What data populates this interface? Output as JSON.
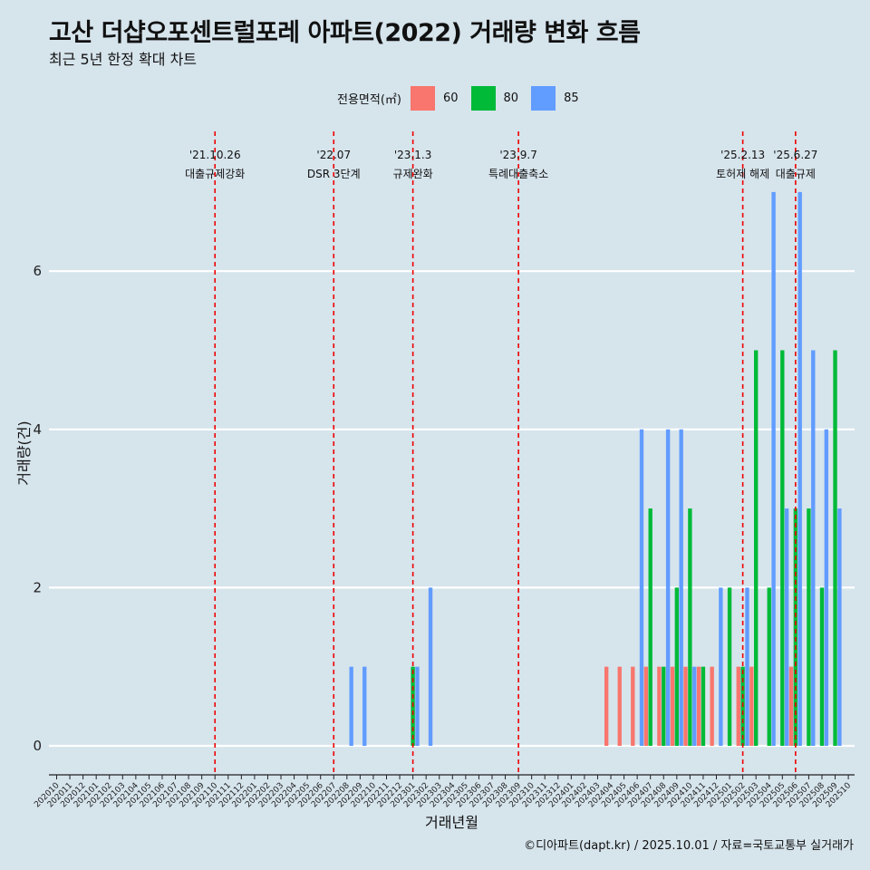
{
  "title": "고산 더샵오포센트럴포레 아파트(2022) 거래량 변화 흐름",
  "subtitle": "최근 5년 한정 확대 차트",
  "caption": "©디아파트(dapt.kr) / 2025.10.01 / 자료=국토교통부 실거래가",
  "colors": {
    "background": "#d6e4ec",
    "s60": "#f8766d",
    "s80": "#00ba38",
    "s85": "#619cff",
    "event_line": "#ee0000"
  },
  "chart_data": {
    "type": "bar",
    "xlabel": "거래년월",
    "ylabel": "거래량(건)",
    "ylim": [
      -0.3,
      7.2
    ],
    "yticks": [
      0,
      2,
      4,
      6
    ],
    "grid": "horizontal",
    "legend": {
      "title": "전용면적(㎡)",
      "placement": "top",
      "entries": [
        "60",
        "80",
        "85"
      ]
    },
    "categories": [
      "202010",
      "202011",
      "202012",
      "202101",
      "202102",
      "202103",
      "202104",
      "202105",
      "202106",
      "202107",
      "202108",
      "202109",
      "202110",
      "202111",
      "202112",
      "202201",
      "202202",
      "202203",
      "202204",
      "202205",
      "202206",
      "202207",
      "202208",
      "202209",
      "202210",
      "202211",
      "202212",
      "202301",
      "202302",
      "202303",
      "202304",
      "202305",
      "202306",
      "202307",
      "202308",
      "202309",
      "202310",
      "202311",
      "202312",
      "202401",
      "202402",
      "202403",
      "202404",
      "202405",
      "202406",
      "202407",
      "202408",
      "202409",
      "202410",
      "202411",
      "202412",
      "202501",
      "202502",
      "202503",
      "202504",
      "202505",
      "202506",
      "202507",
      "202508",
      "202509",
      "202510"
    ],
    "series": [
      {
        "name": "60",
        "color_key": "s60",
        "values": [
          0,
          0,
          0,
          0,
          0,
          0,
          0,
          0,
          0,
          0,
          0,
          0,
          0,
          0,
          0,
          0,
          0,
          0,
          0,
          0,
          0,
          0,
          0,
          0,
          0,
          0,
          0,
          0,
          0,
          0,
          0,
          0,
          0,
          0,
          0,
          0,
          0,
          0,
          0,
          0,
          0,
          0,
          1,
          1,
          1,
          1,
          1,
          1,
          1,
          1,
          1,
          0,
          1,
          1,
          0,
          0,
          1,
          0,
          0,
          0,
          0
        ]
      },
      {
        "name": "80",
        "color_key": "s80",
        "values": [
          0,
          0,
          0,
          0,
          0,
          0,
          0,
          0,
          0,
          0,
          0,
          0,
          0,
          0,
          0,
          0,
          0,
          0,
          0,
          0,
          0,
          0,
          0,
          0,
          0,
          0,
          0,
          1,
          0,
          0,
          0,
          0,
          0,
          0,
          0,
          0,
          0,
          0,
          0,
          0,
          0,
          0,
          0,
          0,
          0,
          3,
          1,
          2,
          3,
          1,
          0,
          2,
          1,
          5,
          2,
          5,
          3,
          3,
          2,
          5,
          0
        ]
      },
      {
        "name": "85",
        "color_key": "s85",
        "values": [
          0,
          0,
          0,
          0,
          0,
          0,
          0,
          0,
          0,
          0,
          0,
          0,
          0,
          0,
          0,
          0,
          0,
          0,
          0,
          0,
          0,
          0,
          1,
          1,
          0,
          0,
          0,
          1,
          2,
          0,
          0,
          0,
          0,
          0,
          0,
          0,
          0,
          0,
          0,
          0,
          0,
          0,
          0,
          0,
          4,
          0,
          4,
          4,
          1,
          0,
          2,
          0,
          2,
          0,
          7,
          3,
          7,
          5,
          4,
          3,
          0
        ]
      }
    ],
    "events": [
      {
        "date": "'21.10.26",
        "label": "대출규제강화",
        "at": "202110"
      },
      {
        "date": "'22.07",
        "label": "DSR 3단계",
        "at": "202207"
      },
      {
        "date": "'23.1.3",
        "label": "규제완화",
        "at": "202301"
      },
      {
        "date": "'23.9.7",
        "label": "특례대출축소",
        "at": "202309"
      },
      {
        "date": "'25.2.13",
        "label": "토허제 해제",
        "at": "202502"
      },
      {
        "date": "'25.6.27",
        "label": "대출규제",
        "at": "202506"
      }
    ]
  }
}
